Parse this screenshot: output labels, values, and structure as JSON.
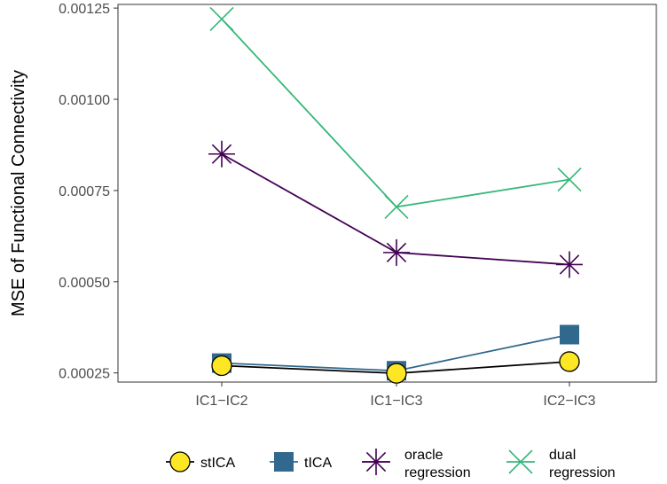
{
  "chart_data": {
    "type": "line",
    "categories": [
      "IC1−IC2",
      "IC1−IC3",
      "IC2−IC3"
    ],
    "ylabel": "MSE of Functional Connectivity",
    "xlabel": "",
    "ylim": [
      0.000225,
      0.00126
    ],
    "yticks": [
      0.00025,
      0.0005,
      0.00075,
      0.001,
      0.00125
    ],
    "ytick_labels": [
      "0.00025",
      "0.00050",
      "0.00075",
      "0.00100",
      "0.00125"
    ],
    "grid": false,
    "legend_position": "bottom",
    "series": [
      {
        "name": "stICA",
        "marker": "circle",
        "color": "#000000",
        "fill": "#FDE725",
        "values": [
          0.00027,
          0.000249,
          0.000281
        ]
      },
      {
        "name": "tICA",
        "marker": "square",
        "color": "#31688E",
        "fill": "#31688E",
        "values": [
          0.000277,
          0.000256,
          0.000355
        ]
      },
      {
        "name": "oracle regression",
        "legend_lines": [
          "oracle",
          "regression"
        ],
        "marker": "star",
        "color": "#440154",
        "fill": "#440154",
        "values": [
          0.00085,
          0.00058,
          0.000547
        ]
      },
      {
        "name": "dual regression",
        "legend_lines": [
          "dual",
          "regression"
        ],
        "marker": "x",
        "color": "#35B779",
        "fill": "#35B779",
        "values": [
          0.00122,
          0.000705,
          0.00078
        ]
      }
    ]
  }
}
